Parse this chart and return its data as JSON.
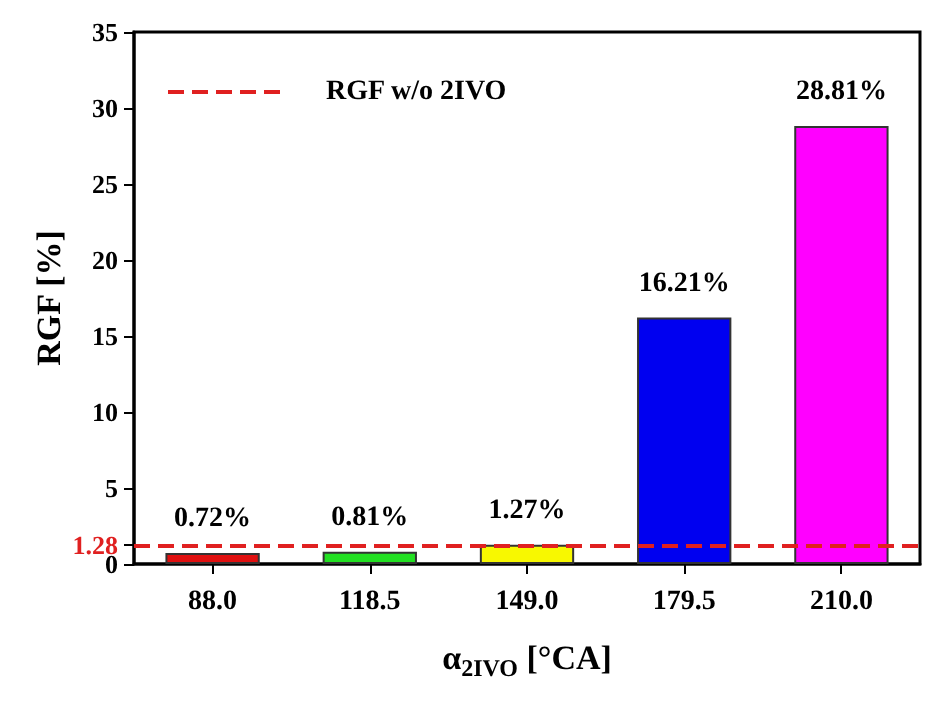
{
  "chart_data": {
    "type": "bar",
    "xlabel": "α$_{2IVO}$ [°CA]",
    "ylabel": "RGF [%]",
    "categories": [
      "88.0",
      "118.5",
      "149.0",
      "179.5",
      "210.0"
    ],
    "values": [
      0.72,
      0.81,
      1.27,
      16.21,
      28.81
    ],
    "colors": [
      "#e01010",
      "#22e022",
      "#f8f800",
      "#0000f0",
      "#ff00ff"
    ],
    "value_labels": [
      "0.72%",
      "0.81%",
      "1.27%",
      "16.21%",
      "28.81%"
    ],
    "ylim": [
      0,
      35
    ],
    "yticks": [
      0,
      {
        "value": 1.28,
        "label": "1.28"
      },
      5,
      10,
      15,
      20,
      25,
      30,
      35
    ],
    "ref_lines": [
      {
        "axis": "y",
        "value": 1.28,
        "label": "RGF w/o 2IVO",
        "color": "#e02020",
        "line_style": "dashed"
      }
    ],
    "legend": "top left",
    "grid": false
  }
}
